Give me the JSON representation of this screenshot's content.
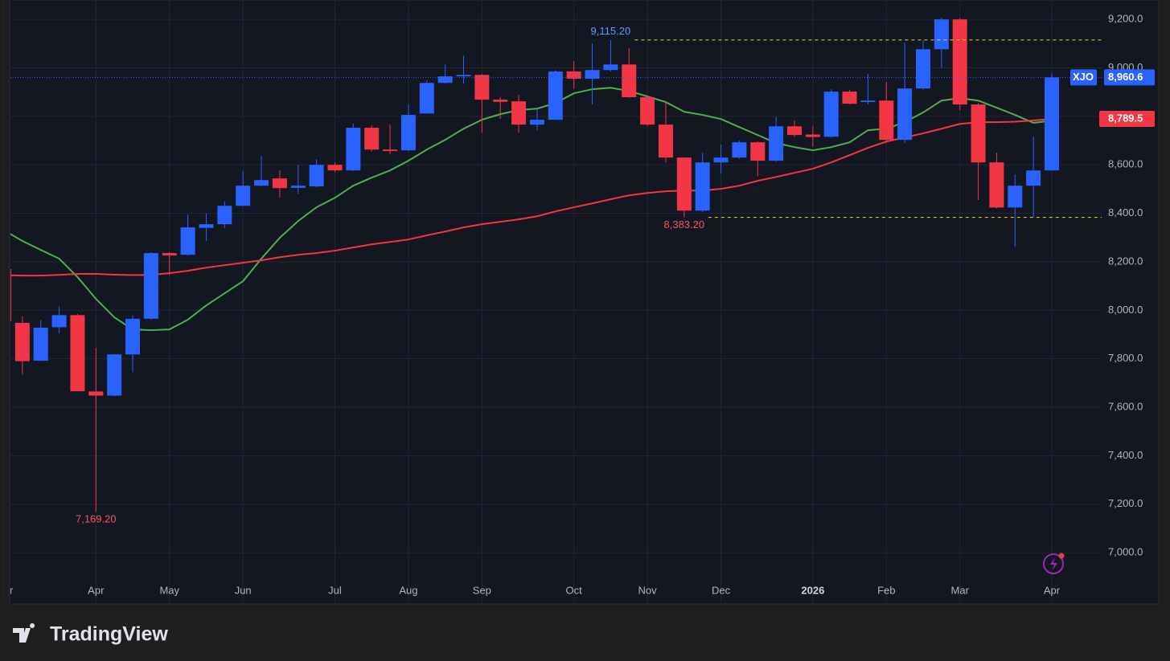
{
  "chart_data": {
    "type": "candlestick",
    "symbol": "XJO",
    "categories": [
      "Mar",
      null,
      null,
      null,
      null,
      "Apr",
      null,
      null,
      null,
      "May",
      null,
      null,
      null,
      "Jun",
      null,
      null,
      null,
      null,
      "Jul",
      null,
      null,
      null,
      "Aug",
      null,
      null,
      null,
      "Sep",
      null,
      null,
      null,
      null,
      "Oct",
      null,
      null,
      null,
      "Nov",
      null,
      null,
      null,
      "Dec",
      null,
      null,
      null,
      null,
      "2026",
      null,
      null,
      null,
      "Feb",
      null,
      null,
      null,
      "Mar",
      null,
      null,
      null,
      null,
      "Apr"
    ],
    "open": [
      8170,
      7948,
      7792,
      7930,
      7980,
      7665,
      7648,
      7818,
      7965,
      8236,
      8229,
      8340,
      8355,
      8431,
      8514,
      8544,
      8505,
      8511,
      8600,
      8577,
      8753,
      8663,
      8660,
      8812,
      8938,
      8965,
      8971,
      8869,
      8862,
      8766,
      8786,
      8985,
      8955,
      8991,
      9014,
      8879,
      8766,
      8630,
      8411,
      8610,
      8630,
      8693,
      8617,
      8759,
      8725,
      8716,
      8902,
      8859,
      8865,
      8703,
      8915,
      9077,
      9200,
      8849,
      8610,
      8424,
      8514,
      8577
    ],
    "high": [
      8180,
      7975,
      7960,
      8015,
      7985,
      7845,
      7820,
      7980,
      8240,
      8240,
      8395,
      8400,
      8450,
      8575,
      8637,
      8577,
      8600,
      8623,
      8610,
      8770,
      8763,
      8766,
      8850,
      8948,
      9014,
      9050,
      8975,
      8880,
      8889,
      8832,
      8991,
      9028,
      9100,
      9115.2,
      9081,
      8889,
      8859,
      8632,
      8650,
      8683,
      8700,
      8697,
      8799,
      8783,
      8760,
      8912,
      8910,
      8975,
      8942,
      9104,
      9114,
      9205,
      9205,
      8855,
      8650,
      8560,
      8716,
      8978
    ],
    "low": [
      7950,
      7735,
      7790,
      7905,
      7665,
      7169.2,
      7645,
      7745,
      7960,
      8145,
      8225,
      8285,
      8340,
      8430,
      8510,
      8465,
      8480,
      8508,
      8570,
      8575,
      8655,
      8643,
      8655,
      8810,
      8935,
      8935,
      8733,
      8790,
      8733,
      8743,
      8785,
      8915,
      8849,
      8985,
      8875,
      8760,
      8610,
      8383.2,
      8405,
      8564,
      8625,
      8554,
      8614,
      8715,
      8675,
      8712,
      8850,
      8849,
      8690,
      8690,
      8910,
      9000,
      8825,
      8455,
      8420,
      8262,
      8385,
      8575
    ],
    "close": [
      7955,
      7790,
      7928,
      7980,
      7666,
      7648,
      7818,
      7965,
      8236,
      8226,
      8342,
      8355,
      8431,
      8514,
      8537,
      8504,
      8514,
      8600,
      8577,
      8753,
      8663,
      8657,
      8806,
      8938,
      8965,
      8971,
      8869,
      8860,
      8766,
      8786,
      8985,
      8955,
      8991,
      9014,
      8879,
      8766,
      8630,
      8411,
      8610,
      8630,
      8693,
      8617,
      8759,
      8723,
      8715,
      8902,
      8852,
      8865,
      8703,
      8915,
      9077,
      9200,
      8849,
      8610,
      8424,
      8514,
      8577,
      8960.6
    ],
    "up_color": "#2962ff",
    "down_color": "#f23645",
    "last_label": "8,960.6",
    "series": [
      {
        "color": "#4caf50",
        "values": [
          8330,
          8286,
          8249,
          8213,
          8137,
          8047,
          7971,
          7921,
          7918,
          7921,
          7961,
          8020,
          8070,
          8120,
          8213,
          8299,
          8368,
          8425,
          8464,
          8514,
          8547,
          8577,
          8617,
          8663,
          8703,
          8749,
          8786,
          8809,
          8826,
          8832,
          8855,
          8895,
          8912,
          8918,
          8905,
          8882,
          8859,
          8819,
          8806,
          8789,
          8756,
          8723,
          8690,
          8673,
          8660,
          8673,
          8693,
          8743,
          8749,
          8776,
          8816,
          8865,
          8875,
          8865,
          8836,
          8806,
          8773,
          8782
        ]
      },
      {
        "color": "#f23645",
        "last_label": "8,789.5",
        "values": [
          8145,
          8143,
          8143,
          8146,
          8150,
          8150,
          8147,
          8145,
          8146,
          8153,
          8163,
          8176,
          8186,
          8196,
          8206,
          8219,
          8229,
          8236,
          8246,
          8259,
          8272,
          8282,
          8292,
          8309,
          8325,
          8342,
          8355,
          8365,
          8375,
          8388,
          8408,
          8425,
          8441,
          8458,
          8474,
          8484,
          8491,
          8494,
          8494,
          8501,
          8514,
          8534,
          8550,
          8567,
          8584,
          8610,
          8640,
          8670,
          8696,
          8713,
          8730,
          8749,
          8769,
          8776,
          8776,
          8778,
          8783,
          8789.5
        ]
      }
    ],
    "annotations": [
      {
        "text": "9,115.20",
        "value": 9115.2,
        "at": "high",
        "dashed": true
      },
      {
        "text": "8,383.20",
        "value": 8383.2,
        "at": "low",
        "dashed": true
      },
      {
        "text": "7,169.20",
        "value": 7169.2,
        "at": "low",
        "dashed": false
      }
    ],
    "ylim": [
      6795,
      9280
    ],
    "yticks": [
      {
        "value": 7000,
        "label": "7,000.0"
      },
      {
        "value": 7200,
        "label": "7,200.0"
      },
      {
        "value": 7400,
        "label": "7,400.0"
      },
      {
        "value": 7600,
        "label": "7,600.0"
      },
      {
        "value": 7800,
        "label": "7,800.0"
      },
      {
        "value": 8000,
        "label": "8,000.0"
      },
      {
        "value": 8200,
        "label": "8,200.0"
      },
      {
        "value": 8400,
        "label": "8,400.0"
      },
      {
        "value": 8600,
        "label": "8,600.0"
      },
      {
        "value": 8800,
        "label": "8,800.0"
      },
      {
        "value": 9000,
        "label": "9,000.0"
      },
      {
        "value": 9200,
        "label": "9,200.0"
      }
    ],
    "grid": true
  },
  "brand": "TradingView"
}
